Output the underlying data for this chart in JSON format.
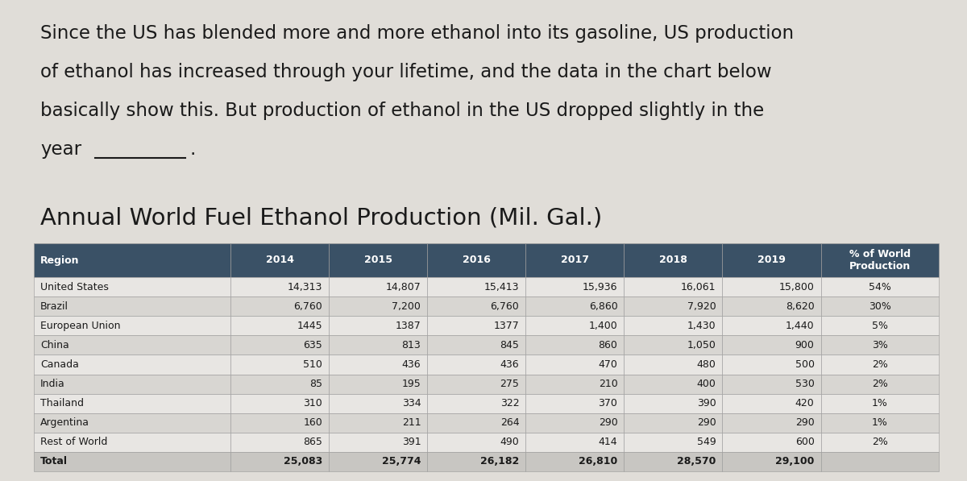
{
  "para_lines": [
    "Since the US has blended more and more ethanol into its gasoline, US production",
    "of ethanol has increased through your lifetime, and the data in the chart below",
    "basically show this. But production of ethanol in the US dropped slightly in the",
    "year"
  ],
  "table_title": "Annual World Fuel Ethanol Production (Mil. Gal.)",
  "header_bg": "#3a5166",
  "header_text_color": "#ffffff",
  "row_colors": [
    "#e8e6e3",
    "#d8d6d2"
  ],
  "total_row_color": "#c8c6c2",
  "border_color": "#999999",
  "bg_color": "#e0ddd8",
  "text_color": "#1a1a1a",
  "columns": [
    "Region",
    "2014",
    "2015",
    "2016",
    "2017",
    "2018",
    "2019",
    "% of World\nProduction"
  ],
  "col_widths_rel": [
    2.0,
    1.0,
    1.0,
    1.0,
    1.0,
    1.0,
    1.0,
    1.2
  ],
  "rows": [
    [
      "United States",
      "14,313",
      "14,807",
      "15,413",
      "15,936",
      "16,061",
      "15,800",
      "54%"
    ],
    [
      "Brazil",
      "6,760",
      "7,200",
      "6,760",
      "6,860",
      "7,920",
      "8,620",
      "30%"
    ],
    [
      "European Union",
      "1445",
      "1387",
      "1377",
      "1,400",
      "1,430",
      "1,440",
      "5%"
    ],
    [
      "China",
      "635",
      "813",
      "845",
      "860",
      "1,050",
      "900",
      "3%"
    ],
    [
      "Canada",
      "510",
      "436",
      "436",
      "470",
      "480",
      "500",
      "2%"
    ],
    [
      "India",
      "85",
      "195",
      "275",
      "210",
      "400",
      "530",
      "2%"
    ],
    [
      "Thailand",
      "310",
      "334",
      "322",
      "370",
      "390",
      "420",
      "1%"
    ],
    [
      "Argentina",
      "160",
      "211",
      "264",
      "290",
      "290",
      "290",
      "1%"
    ],
    [
      "Rest of World",
      "865",
      "391",
      "490",
      "414",
      "549",
      "600",
      "2%"
    ],
    [
      "Total",
      "25,083",
      "25,774",
      "26,182",
      "26,810",
      "28,570",
      "29,100",
      ""
    ]
  ]
}
